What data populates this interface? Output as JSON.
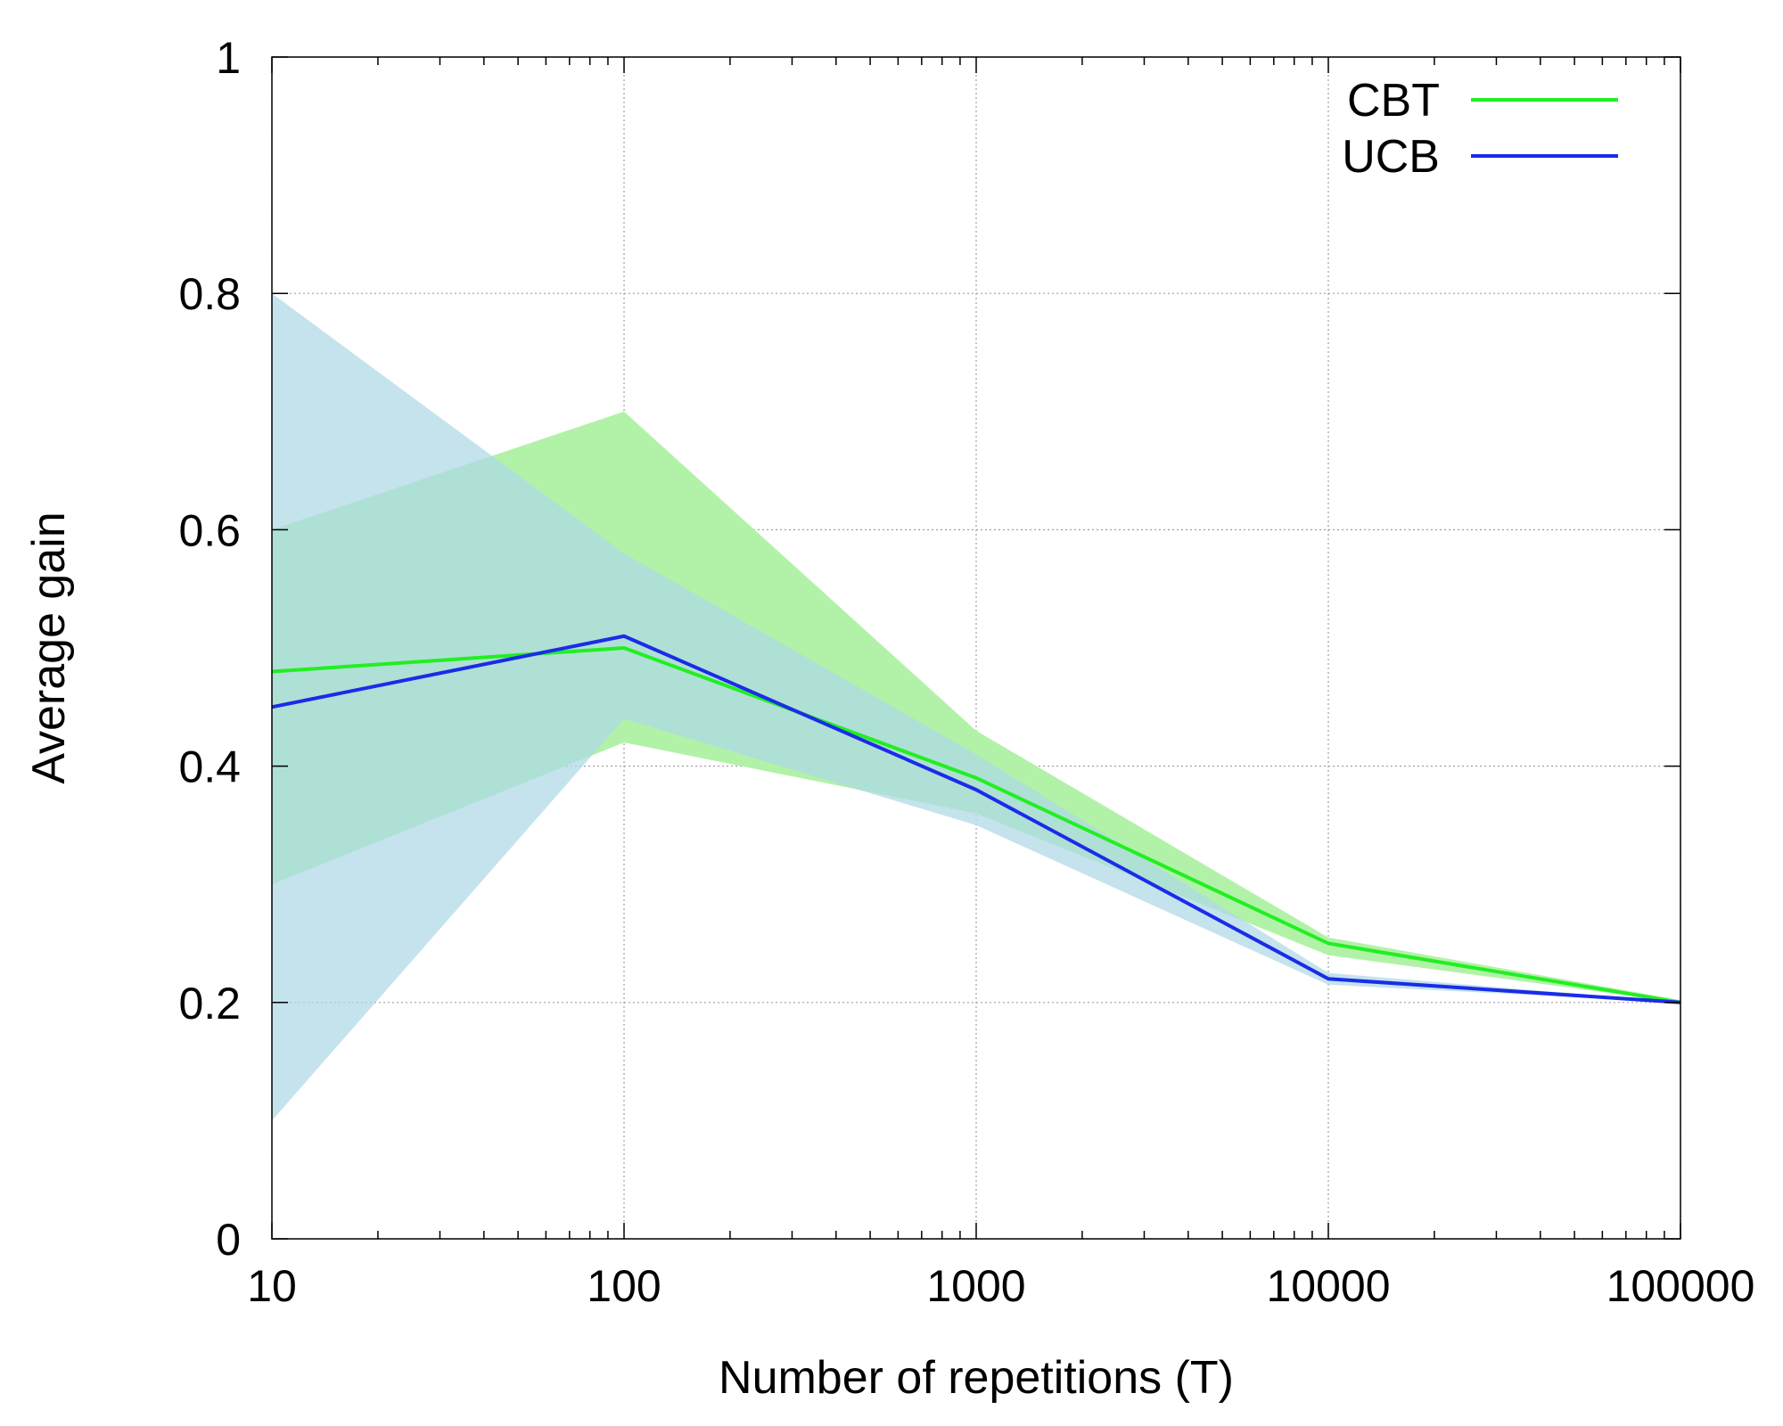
{
  "chart_data": {
    "type": "line",
    "xlabel": "Number of repetitions (T)",
    "ylabel": "Average gain",
    "x_scale": "log",
    "xlim": [
      10,
      100000
    ],
    "ylim": [
      0,
      1
    ],
    "x_ticks": [
      10,
      100,
      1000,
      10000,
      100000
    ],
    "x_tick_labels": [
      "10",
      "100",
      "1000",
      "10000",
      "100000"
    ],
    "y_ticks": [
      0,
      0.2,
      0.4,
      0.6,
      0.8,
      1
    ],
    "y_tick_labels": [
      "0",
      "0.2",
      "0.4",
      "0.6",
      "0.8",
      "1"
    ],
    "grid": true,
    "legend_position": "top-right",
    "x": [
      10,
      100,
      1000,
      10000,
      100000
    ],
    "series": [
      {
        "name": "CBT",
        "values": [
          0.48,
          0.5,
          0.39,
          0.25,
          0.2
        ],
        "band_lower": [
          0.3,
          0.42,
          0.36,
          0.24,
          0.2
        ],
        "band_upper": [
          0.6,
          0.7,
          0.43,
          0.255,
          0.202
        ],
        "color": "#22ee22",
        "band_color": "#b2f2a8"
      },
      {
        "name": "UCB",
        "values": [
          0.45,
          0.51,
          0.38,
          0.22,
          0.2
        ],
        "band_lower": [
          0.1,
          0.44,
          0.35,
          0.215,
          0.2
        ],
        "band_upper": [
          0.8,
          0.58,
          0.41,
          0.225,
          0.2
        ],
        "color": "#1a2ce8",
        "band_color": "#add8e6"
      }
    ]
  }
}
